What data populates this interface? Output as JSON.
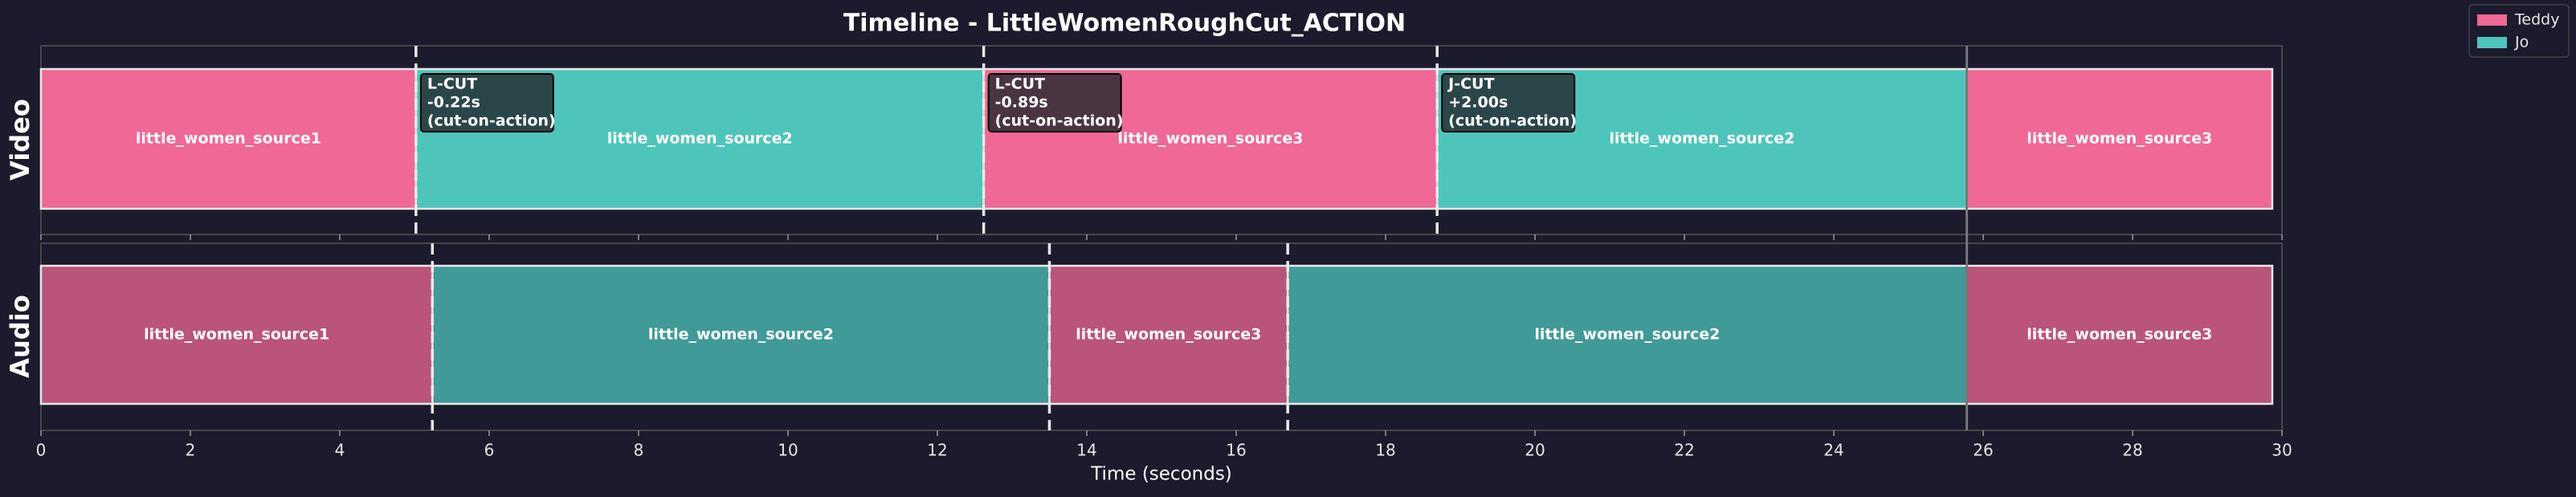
{
  "chart_data": {
    "type": "timeline",
    "title": "Timeline - LittleWomenRoughCut_ACTION",
    "xlabel": "Time (seconds)",
    "xlim": [
      0,
      30
    ],
    "xticks": [
      0,
      2,
      4,
      6,
      8,
      10,
      12,
      14,
      16,
      18,
      20,
      22,
      24,
      26,
      28,
      30
    ],
    "series": [
      {
        "name": "Teddy",
        "color": "#f06896"
      },
      {
        "name": "Jo",
        "color": "#4ec5bb"
      }
    ],
    "tracks": [
      {
        "name": "Video",
        "segments": [
          {
            "label": "little_women_source1",
            "speaker": "Teddy",
            "start": 0,
            "end": 5.02
          },
          {
            "label": "little_women_source2",
            "speaker": "Jo",
            "start": 5.02,
            "end": 12.62
          },
          {
            "label": "little_women_source3",
            "speaker": "Teddy",
            "start": 12.62,
            "end": 18.69
          },
          {
            "label": "little_women_source2",
            "speaker": "Jo",
            "start": 18.69,
            "end": 25.78
          },
          {
            "label": "little_women_source3",
            "speaker": "Teddy",
            "start": 25.78,
            "end": 29.87
          }
        ]
      },
      {
        "name": "Audio",
        "segments": [
          {
            "label": "little_women_source1",
            "speaker": "Teddy",
            "start": 0,
            "end": 5.24
          },
          {
            "label": "little_women_source2",
            "speaker": "Jo",
            "start": 5.24,
            "end": 13.5
          },
          {
            "label": "little_women_source3",
            "speaker": "Teddy",
            "start": 13.5,
            "end": 16.69
          },
          {
            "label": "little_women_source2",
            "speaker": "Jo",
            "start": 16.69,
            "end": 25.78
          },
          {
            "label": "little_women_source3",
            "speaker": "Teddy",
            "start": 25.78,
            "end": 29.87
          }
        ]
      }
    ],
    "annotations": [
      {
        "lines": [
          "L-CUT",
          "-0.22s",
          "(cut-on-action)"
        ]
      },
      {
        "lines": [
          "L-CUT",
          "-0.89s",
          "(cut-on-action)"
        ]
      },
      {
        "lines": [
          "J-CUT",
          "+2.00s",
          "(cut-on-action)"
        ]
      }
    ]
  }
}
